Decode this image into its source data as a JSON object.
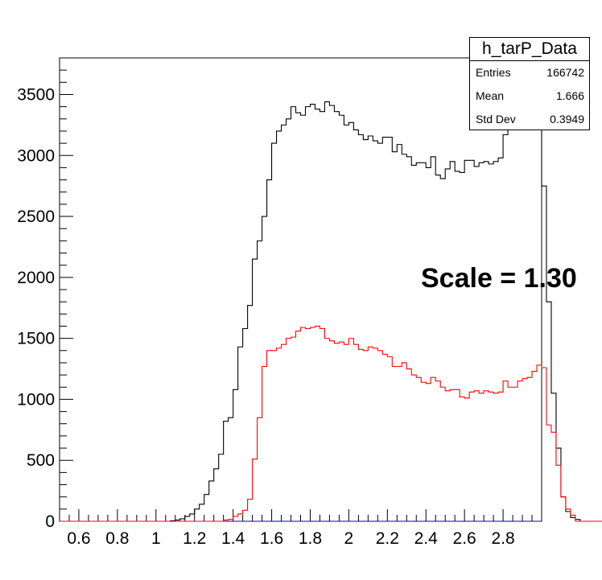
{
  "stats": {
    "title": "h_tarP_Data",
    "rows": [
      {
        "label": "Entries",
        "value": "166742"
      },
      {
        "label": "Mean",
        "value": "1.666"
      },
      {
        "label": "Std Dev",
        "value": "0.3949"
      }
    ]
  },
  "annotation": "Scale = 1.30",
  "chart_data": {
    "type": "histogram",
    "title": "",
    "xlabel": "",
    "ylabel": "",
    "xlim": [
      0.5,
      3.0
    ],
    "ylim": [
      0,
      3800
    ],
    "bin_width": 0.025,
    "x_ticks": [
      0.6,
      0.8,
      1,
      1.2,
      1.4,
      1.6,
      1.8,
      2,
      2.2,
      2.4,
      2.6,
      2.8
    ],
    "x_tick_labels": [
      "0.6",
      "0.8",
      "1",
      "1.2",
      "1.4",
      "1.6",
      "1.8",
      "2",
      "2.2",
      "2.4",
      "2.6",
      "2.8"
    ],
    "y_ticks": [
      0,
      500,
      1000,
      1500,
      2000,
      2500,
      3000,
      3500
    ],
    "y_tick_labels": [
      "0",
      "500",
      "1000",
      "1500",
      "2000",
      "2500",
      "3000",
      "3500"
    ],
    "grid": false,
    "series": [
      {
        "color": "#000000",
        "x_start": 0.5,
        "values": [
          0,
          0,
          0,
          0,
          0,
          0,
          0,
          0,
          0,
          0,
          0,
          0,
          0,
          0,
          0,
          0,
          0,
          0,
          0,
          0,
          0,
          0,
          0,
          5,
          10,
          20,
          40,
          60,
          100,
          140,
          220,
          330,
          430,
          550,
          820,
          850,
          1080,
          1430,
          1580,
          1770,
          2150,
          2300,
          2500,
          2800,
          3100,
          3200,
          3250,
          3300,
          3400,
          3350,
          3330,
          3400,
          3420,
          3380,
          3360,
          3440,
          3410,
          3360,
          3330,
          3250,
          3270,
          3210,
          3170,
          3130,
          3160,
          3120,
          3100,
          3150,
          3150,
          3030,
          3090,
          3010,
          2990,
          2920,
          2940,
          2940,
          2900,
          2990,
          2840,
          2810,
          2890,
          2950,
          2870,
          2860,
          2960,
          2960,
          2910,
          2940,
          2950,
          2930,
          2950,
          2980,
          3170,
          3260,
          3320,
          3350,
          3440,
          3620,
          3600,
          3270,
          2750,
          1800,
          1050,
          600,
          200,
          80,
          30,
          15,
          0,
          0,
          0,
          0,
          0,
          0,
          0,
          0,
          0,
          0,
          0,
          0,
          0,
          0,
          0,
          0,
          0,
          0,
          0,
          0,
          0,
          0
        ]
      },
      {
        "color": "#ff0000",
        "x_start": 0.5,
        "values": [
          0,
          0,
          0,
          0,
          0,
          0,
          0,
          0,
          0,
          0,
          0,
          0,
          0,
          0,
          0,
          0,
          0,
          0,
          0,
          0,
          0,
          0,
          0,
          0,
          0,
          0,
          0,
          0,
          0,
          0,
          0,
          0,
          0,
          0,
          10,
          15,
          40,
          60,
          90,
          180,
          510,
          850,
          1270,
          1400,
          1400,
          1420,
          1450,
          1500,
          1510,
          1560,
          1590,
          1580,
          1590,
          1600,
          1580,
          1500,
          1480,
          1460,
          1470,
          1450,
          1500,
          1450,
          1410,
          1400,
          1430,
          1420,
          1400,
          1370,
          1350,
          1270,
          1270,
          1300,
          1250,
          1200,
          1180,
          1140,
          1130,
          1180,
          1150,
          1100,
          1070,
          1080,
          1080,
          1020,
          1010,
          1060,
          1070,
          1050,
          1070,
          1060,
          1050,
          1060,
          1150,
          1100,
          1100,
          1150,
          1170,
          1180,
          1230,
          1280,
          1260,
          790,
          730,
          460,
          200,
          100,
          50,
          0,
          0,
          0,
          0,
          0,
          0,
          0,
          0,
          0,
          0,
          0,
          0,
          0,
          0,
          0,
          0,
          0,
          0,
          0,
          0,
          0,
          0
        ]
      }
    ]
  }
}
